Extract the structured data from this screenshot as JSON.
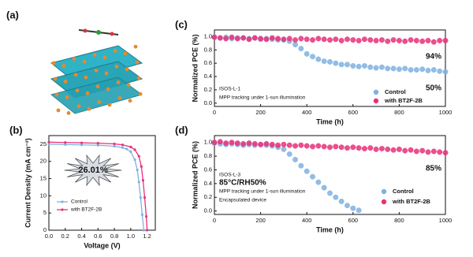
{
  "panel_a": {
    "label": "(a)"
  },
  "chart_data": [
    {
      "type": "line",
      "panel_label": "(b)",
      "x_label": "Voltage (V)",
      "y_label": "Current Density (mA cm⁻²)",
      "xlim": [
        0,
        1.3
      ],
      "ylim": [
        0,
        27.5
      ],
      "xticks": [
        {
          "value": 0,
          "label": "0.0"
        },
        0.2,
        0.4,
        0.6,
        0.8,
        {
          "value": 1,
          "label": "1.0"
        },
        1.2
      ],
      "yticks": [
        0,
        5,
        10,
        15,
        20,
        25
      ],
      "legend": "bottom-left",
      "annotations": [
        {
          "text": "26.01%",
          "color": "#e8231f"
        }
      ],
      "series": [
        {
          "name": "Control",
          "color": "#7fb2e0",
          "x": [
            0,
            0.2,
            0.4,
            0.6,
            0.8,
            0.9,
            0.95,
            1.0,
            1.05,
            1.08,
            1.1,
            1.12,
            1.14,
            1.16
          ],
          "values": [
            25.0,
            24.9,
            24.8,
            24.7,
            24.4,
            24.0,
            23.6,
            22.8,
            20.5,
            17.5,
            14.0,
            9.5,
            4.5,
            0
          ]
        },
        {
          "name": "with BT2F-2B",
          "color": "#e8317a",
          "x": [
            0,
            0.2,
            0.4,
            0.6,
            0.8,
            0.9,
            1.0,
            1.05,
            1.1,
            1.13,
            1.15,
            1.17,
            1.19,
            1.2
          ],
          "values": [
            25.6,
            25.5,
            25.4,
            25.3,
            25.1,
            24.8,
            24.2,
            23.4,
            21.5,
            18.5,
            14.5,
            9.5,
            4,
            0
          ]
        }
      ]
    },
    {
      "type": "scatter",
      "panel_label": "(c)",
      "x_label": "Time (h)",
      "y_label": "Normalized PCE (%)",
      "xlim": [
        0,
        1000
      ],
      "ylim": [
        -0.05,
        1.1
      ],
      "xticks": [
        0,
        200,
        400,
        600,
        800,
        1000
      ],
      "yticks": [
        {
          "value": 0,
          "label": "0.0"
        },
        0.2,
        0.4,
        0.6,
        0.8,
        {
          "value": 1,
          "label": "1.0"
        }
      ],
      "legend": "bottom-right",
      "annotations": [
        {
          "text": "ISOS-L-1",
          "color": "#222222"
        },
        {
          "text": "MPP tracking under 1-sun illumination",
          "color": "#222222"
        },
        {
          "text": "94%",
          "color": "#e8317a"
        },
        {
          "text": "50%",
          "color": "#7fb2e0"
        }
      ],
      "x": [
        0,
        25,
        50,
        75,
        100,
        125,
        150,
        175,
        200,
        225,
        250,
        275,
        300,
        325,
        350,
        375,
        400,
        425,
        450,
        475,
        500,
        525,
        550,
        575,
        600,
        625,
        650,
        675,
        700,
        725,
        750,
        775,
        800,
        825,
        850,
        875,
        900,
        925,
        950,
        975,
        1000
      ],
      "series": [
        {
          "name": "Control",
          "color": "#7fb2e0",
          "values": [
            0.99,
            0.98,
            0.99,
            0.97,
            0.98,
            0.98,
            0.97,
            0.98,
            0.96,
            0.97,
            0.96,
            0.95,
            0.95,
            0.93,
            0.88,
            0.82,
            0.74,
            0.7,
            0.66,
            0.63,
            0.62,
            0.6,
            0.58,
            0.58,
            0.56,
            0.55,
            0.56,
            0.54,
            0.53,
            0.54,
            0.52,
            0.52,
            0.51,
            0.52,
            0.5,
            0.5,
            0.51,
            0.49,
            0.5,
            0.48,
            0.47
          ]
        },
        {
          "name": "with BT2F-2B",
          "color": "#e8317a",
          "values": [
            0.99,
            0.98,
            0.97,
            0.99,
            0.97,
            0.98,
            0.96,
            0.98,
            0.97,
            0.96,
            0.98,
            0.97,
            0.96,
            0.97,
            0.95,
            0.97,
            0.96,
            0.95,
            0.97,
            0.96,
            0.95,
            0.96,
            0.94,
            0.96,
            0.95,
            0.94,
            0.96,
            0.95,
            0.94,
            0.95,
            0.93,
            0.95,
            0.94,
            0.93,
            0.95,
            0.94,
            0.93,
            0.94,
            0.92,
            0.94,
            0.94
          ]
        }
      ]
    },
    {
      "type": "scatter",
      "panel_label": "(d)",
      "x_label": "Time (h)",
      "y_label": "Normalized PCE (%)",
      "xlim": [
        0,
        1000
      ],
      "ylim": [
        -0.05,
        1.1
      ],
      "xticks": [
        0,
        200,
        400,
        600,
        800,
        1000
      ],
      "yticks": [
        {
          "value": 0,
          "label": "0.0"
        },
        0.2,
        0.4,
        0.6,
        0.8,
        {
          "value": 1,
          "label": "1.0"
        }
      ],
      "legend": "bottom-right",
      "annotations": [
        {
          "text": "ISOS-L-3",
          "color": "#222222"
        },
        {
          "text": "85°C/RH50%",
          "color": "#222222"
        },
        {
          "text": "MPP tracking under 1-sun illumination",
          "color": "#222222"
        },
        {
          "text": "Encapsulated device",
          "color": "#222222"
        },
        {
          "text": "85%",
          "color": "#e8317a"
        }
      ],
      "x": [
        0,
        25,
        50,
        75,
        100,
        125,
        150,
        175,
        200,
        225,
        250,
        275,
        300,
        325,
        350,
        375,
        400,
        425,
        450,
        475,
        500,
        525,
        550,
        575,
        600,
        625,
        650,
        675,
        700,
        725,
        750,
        775,
        800,
        825,
        850,
        875,
        900,
        925,
        950,
        975,
        1000
      ],
      "series": [
        {
          "name": "Control",
          "color": "#7fb2e0",
          "values": [
            0.99,
            0.98,
            0.97,
            0.98,
            0.97,
            0.96,
            0.97,
            0.96,
            0.97,
            0.96,
            0.95,
            0.93,
            0.9,
            0.83,
            0.75,
            0.66,
            0.58,
            0.5,
            0.42,
            0.34,
            0.26,
            0.2,
            0.14,
            0.08,
            0.04,
            0.01,
            null,
            null,
            null,
            null,
            null,
            null,
            null,
            null,
            null,
            null,
            null,
            null,
            null,
            null,
            null
          ]
        },
        {
          "name": "with BT2F-2B",
          "color": "#e8317a",
          "values": [
            1.0,
            1.01,
            0.99,
            1.0,
            0.99,
            0.98,
            0.99,
            0.98,
            0.97,
            0.98,
            0.97,
            0.96,
            0.97,
            0.96,
            0.95,
            0.96,
            0.95,
            0.94,
            0.95,
            0.94,
            0.93,
            0.94,
            0.93,
            0.92,
            0.93,
            0.92,
            0.91,
            0.92,
            0.9,
            0.91,
            0.9,
            0.89,
            0.9,
            0.88,
            0.89,
            0.87,
            0.88,
            0.86,
            0.87,
            0.86,
            0.85
          ]
        }
      ]
    }
  ]
}
